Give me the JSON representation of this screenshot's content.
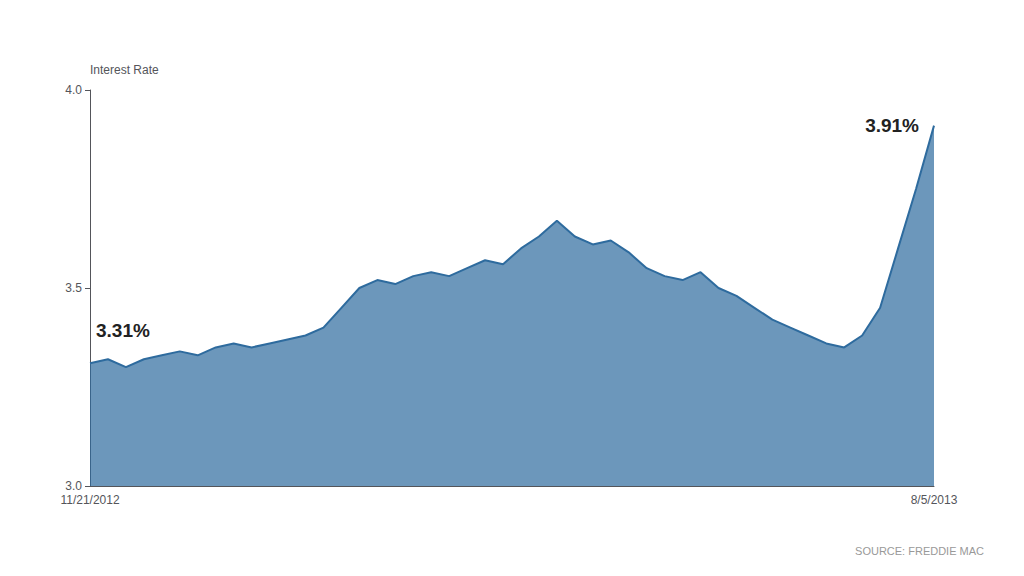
{
  "chart_data": {
    "type": "area",
    "ylabel": "Interest Rate",
    "categories": [
      "11/21/2012",
      null,
      null,
      null,
      null,
      null,
      null,
      null,
      null,
      null,
      null,
      null,
      null,
      null,
      null,
      null,
      null,
      null,
      null,
      null,
      null,
      null,
      null,
      null,
      null,
      null,
      null,
      null,
      null,
      null,
      null,
      null,
      null,
      null,
      null,
      null,
      null,
      null,
      null,
      null,
      null,
      null,
      null,
      null,
      null,
      null,
      null,
      "8/5/2013"
    ],
    "values": [
      3.31,
      3.32,
      3.3,
      3.32,
      3.33,
      3.34,
      3.33,
      3.35,
      3.36,
      3.35,
      3.36,
      3.37,
      3.38,
      3.4,
      3.45,
      3.5,
      3.52,
      3.51,
      3.53,
      3.54,
      3.53,
      3.55,
      3.57,
      3.56,
      3.6,
      3.63,
      3.67,
      3.63,
      3.61,
      3.62,
      3.59,
      3.55,
      3.53,
      3.52,
      3.54,
      3.5,
      3.48,
      3.45,
      3.42,
      3.4,
      3.38,
      3.36,
      3.35,
      3.38,
      3.45,
      3.6,
      3.75,
      3.91
    ],
    "color": "#2e6b9e",
    "ylim": [
      3.0,
      4.0
    ],
    "yticks": [
      {
        "value": 3.0,
        "label": "3.0"
      },
      3.5,
      {
        "value": 4.0,
        "label": "4.0"
      }
    ],
    "grid": false,
    "annotations": [
      {
        "text": "3.31%",
        "x": "11/21/2012",
        "y": 3.31
      },
      {
        "text": "3.91%",
        "x": "8/5/2013",
        "y": 3.91
      },
      {
        "text": "SOURCE: FREDDIE MAC"
      }
    ]
  }
}
